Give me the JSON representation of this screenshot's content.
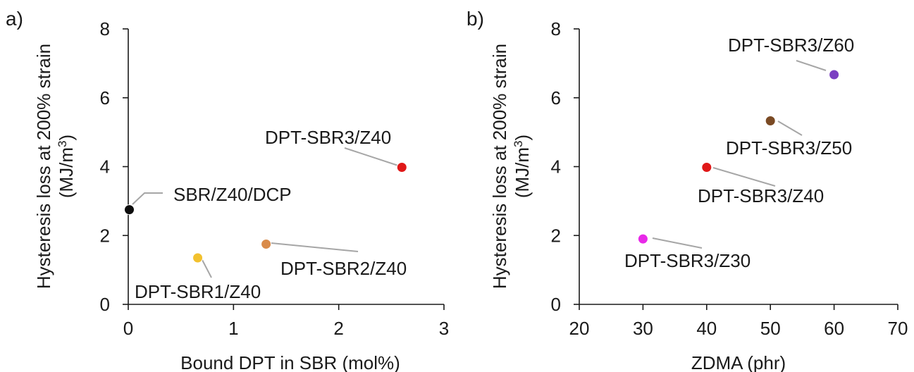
{
  "chart_data": [
    {
      "panel_label": "a)",
      "type": "scatter",
      "xlabel": "Bound DPT in SBR (mol%)",
      "ylabel_line1": "Hysteresis loss at 200% strain",
      "ylabel_line2_prefix": "(MJ/m",
      "ylabel_line2_sup": "3",
      "ylabel_line2_suffix": ")",
      "xlim": [
        0,
        3
      ],
      "ylim": [
        0,
        8
      ],
      "xticks": [
        "0",
        "1",
        "2",
        "3"
      ],
      "yticks": [
        "0",
        "2",
        "4",
        "6",
        "8"
      ],
      "points": [
        {
          "label": "SBR/Z40/DCP",
          "x": 0.01,
          "y": 2.75,
          "color": "#0d0d0d"
        },
        {
          "label": "DPT-SBR1/Z40",
          "x": 0.66,
          "y": 1.35,
          "color": "#f2c12e"
        },
        {
          "label": "DPT-SBR2/Z40",
          "x": 1.31,
          "y": 1.75,
          "color": "#d98b4a"
        },
        {
          "label": "DPT-SBR3/Z40",
          "x": 2.6,
          "y": 3.98,
          "color": "#e01818"
        }
      ]
    },
    {
      "panel_label": "b)",
      "type": "scatter",
      "xlabel": "ZDMA (phr)",
      "ylabel_line1": "Hysteresis loss at 200% strain",
      "ylabel_line2_prefix": "(MJ/m",
      "ylabel_line2_sup": "3",
      "ylabel_line2_suffix": ")",
      "xlim": [
        20,
        70
      ],
      "ylim": [
        0,
        8
      ],
      "xticks": [
        "20",
        "30",
        "40",
        "50",
        "60",
        "70"
      ],
      "yticks": [
        "0",
        "2",
        "4",
        "6",
        "8"
      ],
      "points": [
        {
          "label": "DPT-SBR3/Z30",
          "x": 30,
          "y": 1.9,
          "color": "#e829e8"
        },
        {
          "label": "DPT-SBR3/Z40",
          "x": 40,
          "y": 3.98,
          "color": "#e01818"
        },
        {
          "label": "DPT-SBR3/Z50",
          "x": 50,
          "y": 5.33,
          "color": "#7a4a24"
        },
        {
          "label": "DPT-SBR3/Z60",
          "x": 60,
          "y": 6.67,
          "color": "#7b3fc2"
        }
      ]
    }
  ]
}
